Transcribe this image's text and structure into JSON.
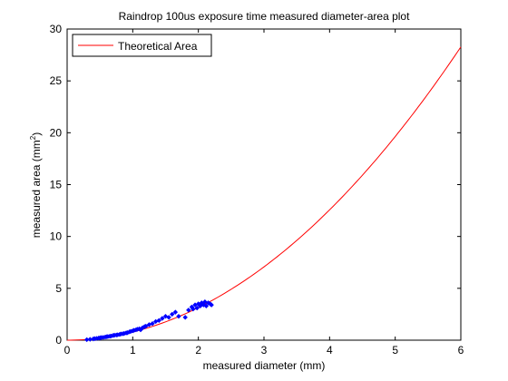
{
  "chart_data": {
    "type": "scatter",
    "title": "Raindrop 100us exposure time measured diameter-area plot",
    "xlabel": "measured diameter (mm)",
    "ylabel_main": "measured area (mm",
    "ylabel_sup": "2",
    "ylabel_close": ")",
    "xlim": [
      0,
      6
    ],
    "ylim": [
      0,
      30
    ],
    "xticks": [
      "0",
      "1",
      "2",
      "3",
      "4",
      "5",
      "6"
    ],
    "yticks": [
      "0",
      "5",
      "10",
      "15",
      "20",
      "25",
      "30"
    ],
    "grid": false,
    "legend_position": "top-left",
    "curve": {
      "name": "Theoretical Area",
      "color": "#ff0000",
      "formula": "area = pi * d^2 / 4",
      "x": [
        0,
        0.25,
        0.5,
        0.75,
        1,
        1.25,
        1.5,
        1.75,
        2,
        2.25,
        2.5,
        2.75,
        3,
        3.25,
        3.5,
        3.75,
        4,
        4.25,
        4.5,
        4.75,
        5,
        5.25,
        5.5,
        5.75,
        6
      ],
      "y": [
        0,
        0.049,
        0.196,
        0.442,
        0.785,
        1.227,
        1.767,
        2.405,
        3.142,
        3.976,
        4.909,
        5.94,
        7.069,
        8.296,
        9.621,
        11.045,
        12.566,
        14.186,
        15.904,
        17.721,
        19.635,
        21.648,
        23.758,
        25.967,
        28.274
      ]
    },
    "measured_points": {
      "color": "#0000ff",
      "x": [
        0.3,
        0.35,
        0.4,
        0.42,
        0.45,
        0.48,
        0.5,
        0.52,
        0.55,
        0.58,
        0.6,
        0.62,
        0.65,
        0.67,
        0.7,
        0.72,
        0.75,
        0.77,
        0.8,
        0.82,
        0.85,
        0.87,
        0.9,
        0.92,
        0.95,
        0.97,
        1.0,
        1.02,
        1.05,
        1.07,
        1.1,
        1.12,
        1.15,
        1.18,
        1.2,
        1.25,
        1.3,
        1.35,
        1.4,
        1.45,
        1.5,
        1.55,
        1.6,
        1.65,
        1.7,
        1.8,
        1.85,
        1.9,
        1.92,
        1.95,
        1.98,
        2.0,
        2.03,
        2.05,
        2.08,
        2.1,
        2.12,
        2.15,
        2.18,
        2.2
      ],
      "y": [
        0.05,
        0.08,
        0.12,
        0.15,
        0.17,
        0.2,
        0.22,
        0.25,
        0.27,
        0.3,
        0.33,
        0.35,
        0.38,
        0.4,
        0.45,
        0.48,
        0.5,
        0.52,
        0.55,
        0.6,
        0.62,
        0.65,
        0.7,
        0.72,
        0.8,
        0.85,
        0.9,
        0.95,
        1.0,
        1.05,
        1.1,
        1.0,
        1.2,
        1.3,
        1.35,
        1.5,
        1.6,
        1.8,
        1.9,
        2.1,
        2.3,
        2.2,
        2.5,
        2.7,
        2.3,
        2.2,
        2.9,
        3.2,
        3.0,
        3.4,
        3.1,
        3.5,
        3.3,
        3.6,
        3.4,
        3.7,
        3.3,
        3.6,
        3.5,
        3.4
      ]
    }
  }
}
